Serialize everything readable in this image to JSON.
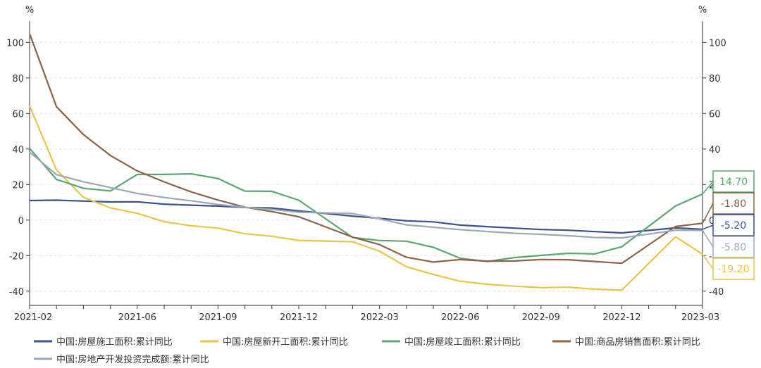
{
  "chart_data": {
    "type": "line",
    "ylabel_left": "%",
    "ylabel_right": "%",
    "ylim": [
      -48,
      112
    ],
    "yticks": [
      -40,
      -20,
      0,
      20,
      40,
      60,
      80,
      100
    ],
    "ytick_labels": [
      "-40",
      "-20",
      "0",
      "20",
      "40",
      "60",
      "80",
      "100"
    ],
    "x": [
      "2021-02",
      "2021-03",
      "2021-04",
      "2021-05",
      "2021-06",
      "2021-07",
      "2021-08",
      "2021-09",
      "2021-10",
      "2021-11",
      "2021-12",
      "2022-01",
      "2022-02",
      "2022-03",
      "2022-04",
      "2022-05",
      "2022-06",
      "2022-07",
      "2022-08",
      "2022-09",
      "2022-10",
      "2022-11",
      "2022-12",
      "2023-01",
      "2023-02",
      "2023-03"
    ],
    "xtick_labels": [
      "2021-02",
      "2021-06",
      "2021-09",
      "2021-12",
      "2022-03",
      "2022-06",
      "2022-09",
      "2022-12",
      "2023-03"
    ],
    "grid": true,
    "legend_position": "bottom",
    "series": [
      {
        "name": "中国:房屋施工面积:累计同比",
        "color": "#3b4f8c",
        "values": [
          11.0,
          11.2,
          null,
          10.2,
          10.3,
          9.0,
          8.4,
          7.9,
          7.1,
          6.8,
          5.2,
          null,
          2.2,
          1.0,
          -0.4,
          -1.0,
          -2.8,
          -3.7,
          -4.5,
          -5.3,
          -5.7,
          -6.5,
          -7.2,
          null,
          -4.4,
          -5.2
        ],
        "end_label": "-5.20"
      },
      {
        "name": "中国:房屋新开工面积:累计同比",
        "color": "#e8c547",
        "values": [
          64.3,
          28.2,
          12.8,
          6.9,
          3.8,
          -0.9,
          -3.2,
          -4.5,
          -7.7,
          -9.1,
          -11.4,
          null,
          -12.2,
          -17.5,
          -26.3,
          -30.6,
          -34.4,
          -36.1,
          -37.2,
          -38.0,
          -37.8,
          -38.9,
          -39.4,
          null,
          -9.4,
          -19.2
        ],
        "end_label": "-19.20"
      },
      {
        "name": "中国:房屋竣工面积:累计同比",
        "color": "#5aa572",
        "values": [
          40.4,
          22.9,
          17.9,
          16.4,
          25.7,
          25.7,
          26.0,
          23.4,
          16.3,
          16.2,
          11.2,
          null,
          -9.8,
          -11.5,
          -11.9,
          -15.3,
          -21.5,
          -23.3,
          -21.1,
          -19.9,
          -18.7,
          -19.0,
          -15.0,
          null,
          8.0,
          14.7
        ],
        "end_label": "14.70"
      },
      {
        "name": "中国:商品房销售面积:累计同比",
        "color": "#8b6246",
        "values": [
          104.9,
          63.8,
          48.1,
          36.4,
          27.7,
          21.5,
          15.9,
          11.3,
          7.3,
          4.8,
          1.9,
          null,
          -9.6,
          -13.8,
          -20.9,
          -23.6,
          -22.2,
          -23.1,
          -23.0,
          -22.2,
          -22.3,
          -23.3,
          -24.3,
          null,
          -3.6,
          -1.8
        ],
        "end_label": "-1.80"
      },
      {
        "name": "中国:房地产开发投资完成额:累计同比",
        "color": "#9aa8b8",
        "values": [
          38.3,
          25.6,
          21.6,
          18.3,
          15.0,
          12.7,
          10.9,
          8.8,
          7.2,
          6.0,
          4.4,
          null,
          3.7,
          0.7,
          -2.7,
          -4.0,
          -5.4,
          -6.4,
          -7.4,
          -8.0,
          -8.8,
          -9.8,
          -10.0,
          null,
          -5.7,
          -5.8
        ],
        "end_label": "-5.80"
      }
    ]
  }
}
